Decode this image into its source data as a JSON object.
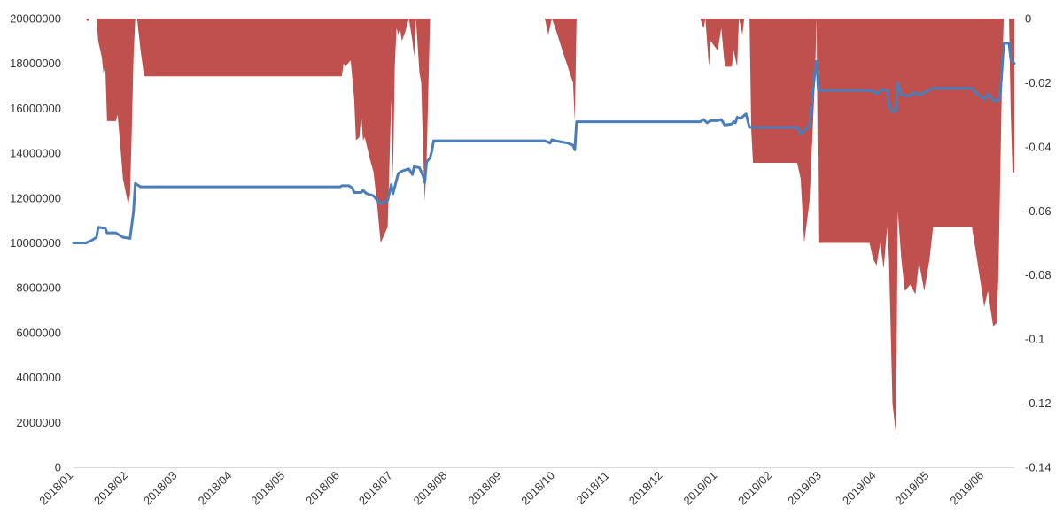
{
  "chart_data": {
    "type": "line+area",
    "title": "",
    "xlabel": "",
    "x_tick_labels": [
      "2018/01",
      "2018/02",
      "2018/03",
      "2018/04",
      "2018/05",
      "2018/06",
      "2018/07",
      "2018/08",
      "2018/09",
      "2018/10",
      "2018/11",
      "2018/12",
      "2019/01",
      "2019/02",
      "2019/03",
      "2019/04",
      "2019/05",
      "2019/06"
    ],
    "x_range": [
      "2018/01",
      "2019/06"
    ],
    "y_left": {
      "label": "",
      "range": [
        0,
        20000000
      ],
      "ticks": [
        "0",
        "2000000",
        "4000000",
        "6000000",
        "8000000",
        "10000000",
        "12000000",
        "14000000",
        "16000000",
        "18000000",
        "20000000"
      ]
    },
    "y_right": {
      "label": "",
      "range": [
        -0.14,
        0
      ],
      "ticks": [
        "0",
        "-0.02",
        "-0.04",
        "-0.06",
        "-0.08",
        "-0.1",
        "-0.12",
        "-0.14"
      ]
    },
    "grid": false,
    "legend": "none",
    "colors": {
      "line": "#4a7ebb",
      "area": "#c0504d",
      "axis": "#d9d9d9",
      "text": "#333333"
    },
    "series": [
      {
        "type": "line",
        "axis": "left",
        "points": [
          [
            "2018/01/01",
            10000000
          ],
          [
            "2018/01/08",
            10000000
          ],
          [
            "2018/01/11",
            10100000
          ],
          [
            "2018/01/14",
            10250000
          ],
          [
            "2018/01/15",
            10700000
          ],
          [
            "2018/01/19",
            10650000
          ],
          [
            "2018/01/20",
            10450000
          ],
          [
            "2018/01/25",
            10450000
          ],
          [
            "2018/01/29",
            10250000
          ],
          [
            "2018/02/02",
            10200000
          ],
          [
            "2018/02/03",
            10800000
          ],
          [
            "2018/02/04",
            11400000
          ],
          [
            "2018/02/05",
            12650000
          ],
          [
            "2018/02/07",
            12550000
          ],
          [
            "2018/02/08",
            12500000
          ],
          [
            "2018/03/15",
            12500000
          ],
          [
            "2018/05/01",
            12500000
          ],
          [
            "2018/06/01",
            12500000
          ],
          [
            "2018/06/02",
            12550000
          ],
          [
            "2018/06/06",
            12550000
          ],
          [
            "2018/06/08",
            12450000
          ],
          [
            "2018/06/09",
            12250000
          ],
          [
            "2018/06/13",
            12250000
          ],
          [
            "2018/06/14",
            12350000
          ],
          [
            "2018/06/16",
            12200000
          ],
          [
            "2018/06/20",
            12100000
          ],
          [
            "2018/06/22",
            11900000
          ],
          [
            "2018/06/24",
            11750000
          ],
          [
            "2018/06/28",
            11900000
          ],
          [
            "2018/06/30",
            12600000
          ],
          [
            "2018/07/01",
            12200000
          ],
          [
            "2018/07/04",
            13100000
          ],
          [
            "2018/07/06",
            13200000
          ],
          [
            "2018/07/10",
            13300000
          ],
          [
            "2018/07/12",
            13050000
          ],
          [
            "2018/07/13",
            13400000
          ],
          [
            "2018/07/16",
            13350000
          ],
          [
            "2018/07/18",
            13000000
          ],
          [
            "2018/07/19",
            12700000
          ],
          [
            "2018/07/20",
            13600000
          ],
          [
            "2018/07/22",
            13800000
          ],
          [
            "2018/07/23",
            14100000
          ],
          [
            "2018/07/24",
            14550000
          ],
          [
            "2018/08/15",
            14550000
          ],
          [
            "2018/09/25",
            14550000
          ],
          [
            "2018/09/28",
            14450000
          ],
          [
            "2018/09/29",
            14600000
          ],
          [
            "2018/10/01",
            14550000
          ],
          [
            "2018/10/08",
            14450000
          ],
          [
            "2018/10/11",
            14350000
          ],
          [
            "2018/10/12",
            14150000
          ],
          [
            "2018/10/13",
            15400000
          ],
          [
            "2018/11/15",
            15400000
          ],
          [
            "2018/12/22",
            15400000
          ],
          [
            "2018/12/24",
            15500000
          ],
          [
            "2018/12/26",
            15350000
          ],
          [
            "2018/12/28",
            15450000
          ],
          [
            "2019/01/01",
            15450000
          ],
          [
            "2019/01/03",
            15500000
          ],
          [
            "2019/01/05",
            15250000
          ],
          [
            "2019/01/09",
            15300000
          ],
          [
            "2019/01/10",
            15400000
          ],
          [
            "2019/01/11",
            15350000
          ],
          [
            "2019/01/12",
            15600000
          ],
          [
            "2019/01/14",
            15550000
          ],
          [
            "2019/01/17",
            15750000
          ],
          [
            "2019/01/19",
            15150000
          ],
          [
            "2019/02/15",
            15150000
          ],
          [
            "2019/02/17",
            14850000
          ],
          [
            "2019/02/20",
            15100000
          ],
          [
            "2019/02/22",
            15200000
          ],
          [
            "2019/02/25",
            17600000
          ],
          [
            "2019/02/26",
            18100000
          ],
          [
            "2019/02/27",
            16800000
          ],
          [
            "2019/03/28",
            16800000
          ],
          [
            "2019/03/30",
            16750000
          ],
          [
            "2019/04/01",
            16650000
          ],
          [
            "2019/04/04",
            16850000
          ],
          [
            "2019/04/07",
            16800000
          ],
          [
            "2019/04/08",
            16100000
          ],
          [
            "2019/04/10",
            15850000
          ],
          [
            "2019/04/12",
            15900000
          ],
          [
            "2019/04/13",
            17100000
          ],
          [
            "2019/04/15",
            16600000
          ],
          [
            "2019/04/20",
            16550000
          ],
          [
            "2019/04/22",
            16700000
          ],
          [
            "2019/04/25",
            16600000
          ],
          [
            "2019/04/28",
            16700000
          ],
          [
            "2019/05/03",
            16900000
          ],
          [
            "2019/05/25",
            16900000
          ],
          [
            "2019/05/27",
            16700000
          ],
          [
            "2019/06/01",
            16400000
          ],
          [
            "2019/06/03",
            16650000
          ],
          [
            "2019/06/06",
            16350000
          ],
          [
            "2019/06/09",
            16350000
          ],
          [
            "2019/06/10",
            16600000
          ],
          [
            "2019/06/11",
            17700000
          ],
          [
            "2019/06/12",
            18900000
          ],
          [
            "2019/06/15",
            18900000
          ],
          [
            "2019/06/16",
            18200000
          ],
          [
            "2019/06/18",
            18000000
          ]
        ]
      },
      {
        "type": "area",
        "axis": "right",
        "baseline": 0,
        "points": [
          [
            "2018/01/01",
            0
          ],
          [
            "2018/01/08",
            0
          ],
          [
            "2018/01/09",
            -0.001
          ],
          [
            "2018/01/10",
            0
          ],
          [
            "2018/01/14",
            0
          ],
          [
            "2018/01/15",
            -0.007
          ],
          [
            "2018/01/17",
            -0.012
          ],
          [
            "2018/01/18",
            -0.017
          ],
          [
            "2018/01/19",
            -0.015
          ],
          [
            "2018/01/20",
            -0.032
          ],
          [
            "2018/01/25",
            -0.032
          ],
          [
            "2018/01/26",
            -0.03
          ],
          [
            "2018/01/28",
            -0.043
          ],
          [
            "2018/01/29",
            -0.05
          ],
          [
            "2018/02/01",
            -0.058
          ],
          [
            "2018/02/02",
            -0.055
          ],
          [
            "2018/02/03",
            -0.035
          ],
          [
            "2018/02/04",
            -0.012
          ],
          [
            "2018/02/05",
            0
          ],
          [
            "2018/02/06",
            0
          ],
          [
            "2018/02/08",
            -0.01
          ],
          [
            "2018/02/10",
            -0.018
          ],
          [
            "2018/06/02",
            -0.018
          ],
          [
            "2018/06/03",
            -0.014
          ],
          [
            "2018/06/04",
            -0.015
          ],
          [
            "2018/06/07",
            -0.013
          ],
          [
            "2018/06/09",
            -0.025
          ],
          [
            "2018/06/10",
            -0.038
          ],
          [
            "2018/06/12",
            -0.037
          ],
          [
            "2018/06/13",
            -0.03
          ],
          [
            "2018/06/14",
            -0.038
          ],
          [
            "2018/06/15",
            -0.037
          ],
          [
            "2018/06/18",
            -0.044
          ],
          [
            "2018/06/20",
            -0.048
          ],
          [
            "2018/06/22",
            -0.058
          ],
          [
            "2018/06/24",
            -0.07
          ],
          [
            "2018/06/28",
            -0.065
          ],
          [
            "2018/06/30",
            -0.025
          ],
          [
            "2018/07/01",
            -0.05
          ],
          [
            "2018/07/02",
            -0.015
          ],
          [
            "2018/07/03",
            -0.003
          ],
          [
            "2018/07/04",
            -0.005
          ],
          [
            "2018/07/05",
            -0.003
          ],
          [
            "2018/07/06",
            -0.007
          ],
          [
            "2018/07/08",
            -0.004
          ],
          [
            "2018/07/10",
            0
          ],
          [
            "2018/07/12",
            -0.007
          ],
          [
            "2018/07/13",
            -0.012
          ],
          [
            "2018/07/14",
            0
          ],
          [
            "2018/07/16",
            -0.017
          ],
          [
            "2018/07/17",
            -0.02
          ],
          [
            "2018/07/18",
            -0.04
          ],
          [
            "2018/07/19",
            -0.057
          ],
          [
            "2018/07/20",
            -0.045
          ],
          [
            "2018/07/22",
            0
          ],
          [
            "2018/09/25",
            0
          ],
          [
            "2018/09/27",
            -0.005
          ],
          [
            "2018/09/29",
            0
          ],
          [
            "2018/10/01",
            -0.003
          ],
          [
            "2018/10/05",
            -0.01
          ],
          [
            "2018/10/11",
            -0.02
          ],
          [
            "2018/10/12",
            -0.032
          ],
          [
            "2018/10/13",
            0
          ],
          [
            "2018/12/22",
            0
          ],
          [
            "2018/12/24",
            -0.003
          ],
          [
            "2018/12/25",
            0
          ],
          [
            "2018/12/27",
            -0.015
          ],
          [
            "2018/12/28",
            -0.007
          ],
          [
            "2019/01/01",
            -0.01
          ],
          [
            "2019/01/03",
            -0.003
          ],
          [
            "2019/01/05",
            -0.015
          ],
          [
            "2019/01/09",
            -0.015
          ],
          [
            "2019/01/10",
            -0.01
          ],
          [
            "2019/01/12",
            -0.015
          ],
          [
            "2019/01/13",
            0
          ],
          [
            "2019/01/15",
            -0.005
          ],
          [
            "2019/01/16",
            0
          ],
          [
            "2019/01/19",
            0
          ],
          [
            "2019/01/20",
            -0.035
          ],
          [
            "2019/01/21",
            -0.045
          ],
          [
            "2019/02/15",
            -0.045
          ],
          [
            "2019/02/17",
            -0.05
          ],
          [
            "2019/02/19",
            -0.07
          ],
          [
            "2019/02/22",
            -0.057
          ],
          [
            "2019/02/25",
            -0.02
          ],
          [
            "2019/02/26",
            0
          ],
          [
            "2019/02/27",
            -0.07
          ],
          [
            "2019/03/28",
            -0.07
          ],
          [
            "2019/03/30",
            -0.075
          ],
          [
            "2019/04/01",
            -0.077
          ],
          [
            "2019/04/03",
            -0.07
          ],
          [
            "2019/04/05",
            -0.078
          ],
          [
            "2019/04/07",
            -0.065
          ],
          [
            "2019/04/08",
            -0.075
          ],
          [
            "2019/04/10",
            -0.12
          ],
          [
            "2019/04/12",
            -0.13
          ],
          [
            "2019/04/13",
            -0.06
          ],
          [
            "2019/04/15",
            -0.075
          ],
          [
            "2019/04/17",
            -0.085
          ],
          [
            "2019/04/20",
            -0.083
          ],
          [
            "2019/04/23",
            -0.086
          ],
          [
            "2019/04/25",
            -0.076
          ],
          [
            "2019/04/28",
            -0.085
          ],
          [
            "2019/05/01",
            -0.075
          ],
          [
            "2019/05/03",
            -0.065
          ],
          [
            "2019/05/25",
            -0.065
          ],
          [
            "2019/05/27",
            -0.072
          ],
          [
            "2019/06/01",
            -0.09
          ],
          [
            "2019/06/03",
            -0.085
          ],
          [
            "2019/06/06",
            -0.096
          ],
          [
            "2019/06/08",
            -0.095
          ],
          [
            "2019/06/09",
            -0.08
          ],
          [
            "2019/06/10",
            -0.05
          ],
          [
            "2019/06/11",
            -0.02
          ],
          [
            "2019/06/12",
            0
          ],
          [
            "2019/06/15",
            0
          ],
          [
            "2019/06/16",
            -0.03
          ],
          [
            "2019/06/17",
            -0.048
          ],
          [
            "2019/06/18",
            -0.048
          ]
        ]
      }
    ]
  }
}
